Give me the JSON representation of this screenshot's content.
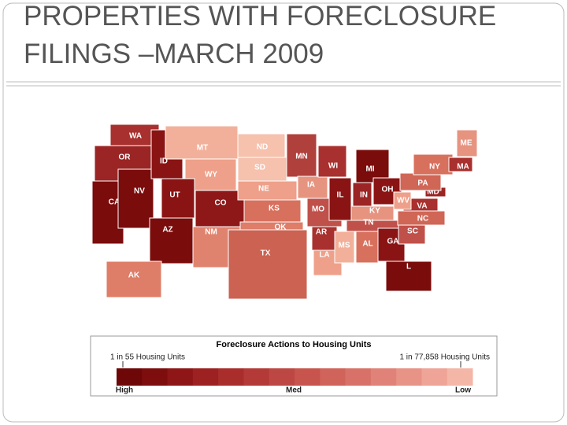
{
  "header": {
    "title_lines": [
      "PROPERTIES WITH FORECLOSURE",
      "FILINGS –MARCH 2009"
    ]
  },
  "map": {
    "states": [
      {
        "label": "WA",
        "color": "#a8302e"
      },
      {
        "label": "OR",
        "color": "#9a2524"
      },
      {
        "label": "CA",
        "color": "#7a0c0c"
      },
      {
        "label": "NV",
        "color": "#7a0c0c"
      },
      {
        "label": "ID",
        "color": "#8a1414"
      },
      {
        "label": "MT",
        "color": "#f2b09a"
      },
      {
        "label": "WY",
        "color": "#eea08a"
      },
      {
        "label": "UT",
        "color": "#8a1414"
      },
      {
        "label": "CO",
        "color": "#8e1818"
      },
      {
        "label": "AZ",
        "color": "#7a0c0c"
      },
      {
        "label": "NM",
        "color": "#e0836e"
      },
      {
        "label": "ND",
        "color": "#f6c1ad"
      },
      {
        "label": "SD",
        "color": "#f6c1ad"
      },
      {
        "label": "NE",
        "color": "#eea08a"
      },
      {
        "label": "KS",
        "color": "#d8705e"
      },
      {
        "label": "OK",
        "color": "#de7d68"
      },
      {
        "label": "TX",
        "color": "#cc6252"
      },
      {
        "label": "MN",
        "color": "#b0403c"
      },
      {
        "label": "IA",
        "color": "#e69480"
      },
      {
        "label": "MO",
        "color": "#c0504a"
      },
      {
        "label": "AR",
        "color": "#a8302e"
      },
      {
        "label": "LA",
        "color": "#eea08a"
      },
      {
        "label": "WI",
        "color": "#a8302e"
      },
      {
        "label": "IL",
        "color": "#8a1414"
      },
      {
        "label": "MI",
        "color": "#7a0c0c"
      },
      {
        "label": "IN",
        "color": "#9a2524"
      },
      {
        "label": "OH",
        "color": "#8a1414"
      },
      {
        "label": "KY",
        "color": "#e69480"
      },
      {
        "label": "TN",
        "color": "#c0504a"
      },
      {
        "label": "MS",
        "color": "#f2b09a"
      },
      {
        "label": "AL",
        "color": "#d8705e"
      },
      {
        "label": "GA",
        "color": "#8a1414"
      },
      {
        "label": "L",
        "color": "#7a0c0c"
      },
      {
        "label": "SC",
        "color": "#c0504a"
      },
      {
        "label": "NC",
        "color": "#d06656"
      },
      {
        "label": "VA",
        "color": "#a8302e"
      },
      {
        "label": "WV",
        "color": "#eea08a"
      },
      {
        "label": "MD",
        "color": "#9a2524"
      },
      {
        "label": "PA",
        "color": "#d06656"
      },
      {
        "label": "NY",
        "color": "#d8705e"
      },
      {
        "label": "ME",
        "color": "#e69480"
      },
      {
        "label": "MA",
        "color": "#a8302e"
      },
      {
        "label": "AK",
        "color": "#de7d68"
      }
    ]
  },
  "legend": {
    "title": "Foreclosure Actions to Housing Units",
    "min_label": "1 in 55 Housing Units",
    "max_label": "1 in 77,858 Housing Units",
    "scale_labels": [
      "High",
      "Med",
      "Low"
    ],
    "colors": [
      "#6e0808",
      "#7e0e0e",
      "#8e1616",
      "#9c2120",
      "#a82d2b",
      "#b33a36",
      "#bd4742",
      "#c7554e",
      "#d0635a",
      "#d87268",
      "#e08277",
      "#e79386",
      "#eea496",
      "#f4b6a6"
    ]
  }
}
